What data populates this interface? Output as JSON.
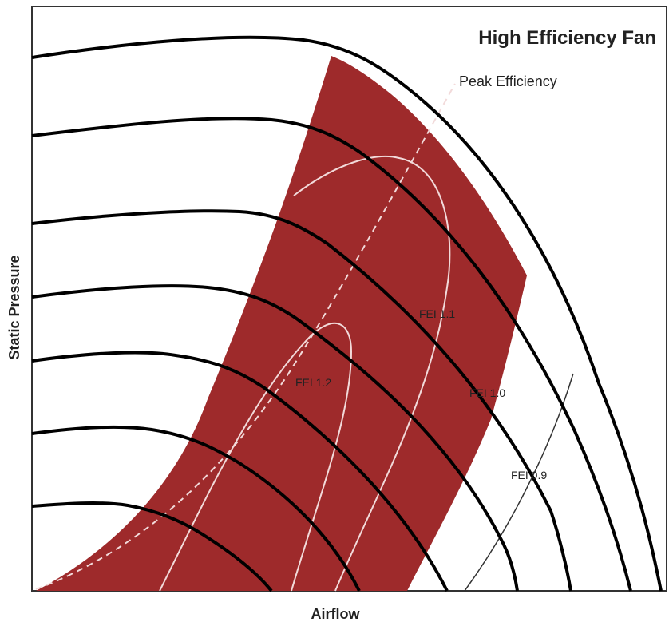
{
  "title": "High Efficiency Fan",
  "xlabel": "Airflow",
  "ylabel": "Static Pressure",
  "peak_label": "Peak Efficiency",
  "fei_labels": [
    "FEI 1.2",
    "FEI 1.1",
    "FEI 1.0",
    "FEI 0.9"
  ],
  "colors": {
    "region": "#9e2a2b",
    "fan_curve": "#000000",
    "fei_contour": "#f2dada",
    "axis": "#333333"
  }
}
